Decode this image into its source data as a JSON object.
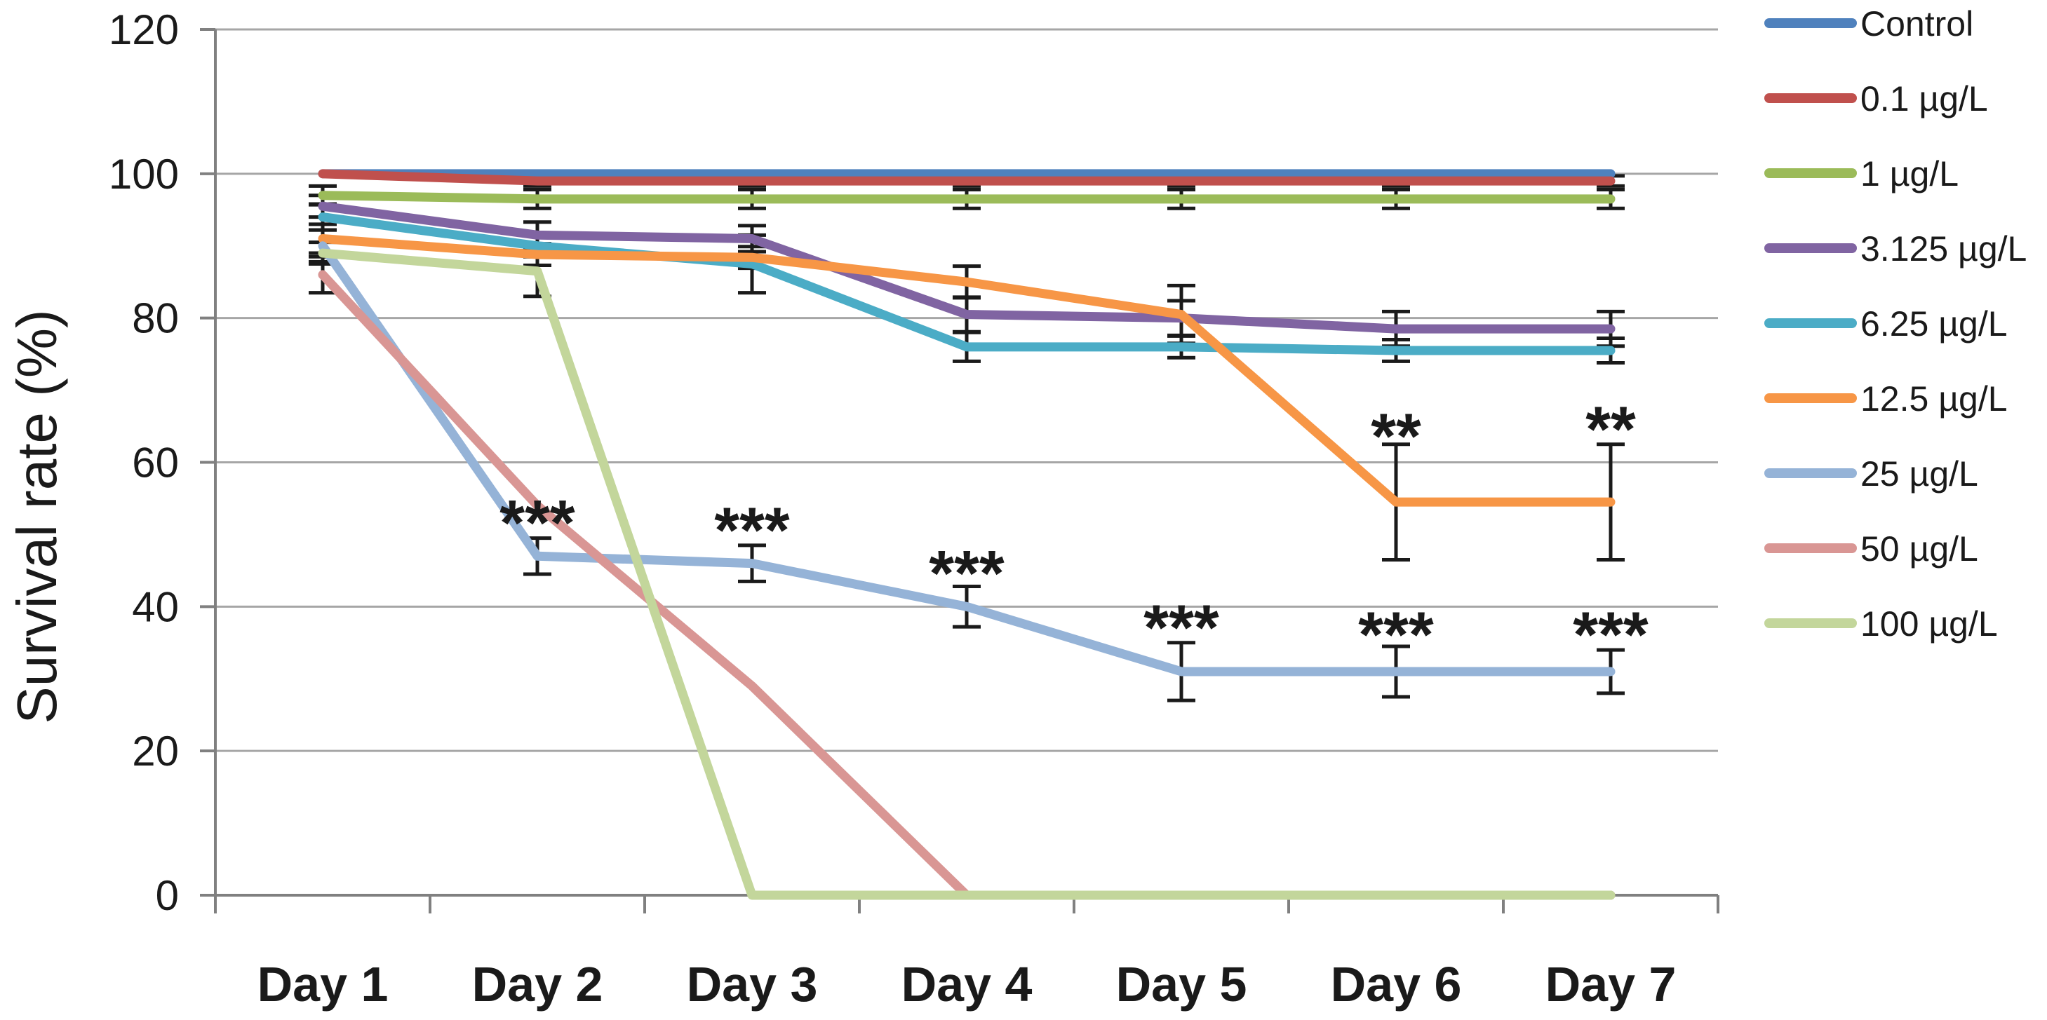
{
  "chart_data": {
    "type": "line",
    "title": "",
    "xlabel": "",
    "ylabel": "Survival rate (%)",
    "ylim": [
      0,
      120
    ],
    "yticks": [
      0,
      20,
      40,
      60,
      80,
      100,
      120
    ],
    "grid": true,
    "legend_position": "right",
    "categories": [
      "Day 1",
      "Day 2",
      "Day 3",
      "Day 4",
      "Day 5",
      "Day 6",
      "Day 7"
    ],
    "series": [
      {
        "name": "Control",
        "color": "#4F81BD",
        "values": [
          100,
          100,
          100,
          100,
          100,
          100,
          100
        ],
        "err": [
          null,
          null,
          null,
          null,
          null,
          null,
          null
        ]
      },
      {
        "name": "0.1 µg/L",
        "color": "#C0504D",
        "values": [
          100,
          99,
          99,
          99,
          99,
          99,
          99
        ],
        "err": [
          null,
          0.7,
          0.7,
          0.7,
          0.7,
          0.7,
          0.7
        ]
      },
      {
        "name": "1 µg/L",
        "color": "#9BBB59",
        "values": [
          97,
          96.5,
          96.5,
          96.5,
          96.5,
          96.5,
          96.5
        ],
        "err": [
          1.3,
          1.3,
          1.3,
          1.3,
          1.3,
          1.3,
          1.3
        ]
      },
      {
        "name": "3.125 µg/L",
        "color": "#8064A2",
        "values": [
          95.5,
          91.5,
          91,
          80.5,
          80,
          78.5,
          78.5
        ],
        "err": [
          1.5,
          1.8,
          1.8,
          2.4,
          2.4,
          2.4,
          2.4
        ]
      },
      {
        "name": "6.25 µg/L",
        "color": "#4BACC6",
        "values": [
          94,
          90,
          87.5,
          76,
          76,
          75.5,
          75.5
        ],
        "err": [
          1.8,
          1.5,
          4,
          2,
          1.5,
          1.5,
          1.7
        ]
      },
      {
        "name": "12.5 µg/L",
        "color": "#F79646",
        "values": [
          91,
          88.8,
          88.4,
          85,
          80.5,
          54.5,
          54.5
        ],
        "err": [
          2,
          1.5,
          1.5,
          2.2,
          4,
          8,
          8
        ]
      },
      {
        "name": "25 µg/L",
        "color": "#95B3D7",
        "values": [
          90,
          47,
          46,
          40,
          31,
          31,
          31
        ],
        "err": [
          2.2,
          2.5,
          2.5,
          2.8,
          4,
          3.5,
          3
        ]
      },
      {
        "name": "50 µg/L",
        "color": "#D99694",
        "values": [
          86,
          54,
          29,
          0,
          0,
          0,
          0
        ],
        "err": [
          2.5,
          null,
          null,
          null,
          null,
          null,
          null
        ]
      },
      {
        "name": "100 µg/L",
        "color": "#C3D69B",
        "values": [
          89,
          86.5,
          0,
          0,
          0,
          0,
          0
        ],
        "err": [
          1.5,
          3.5,
          null,
          null,
          null,
          null,
          null
        ]
      }
    ],
    "annotations": [
      {
        "text": "***",
        "day": 2,
        "value": 53,
        "series": "25 µg/L"
      },
      {
        "text": "***",
        "day": 3,
        "value": 52,
        "series": "25 µg/L"
      },
      {
        "text": "***",
        "day": 4,
        "value": 46,
        "series": "25 µg/L"
      },
      {
        "text": "***",
        "day": 5,
        "value": 38.5,
        "series": "25 µg/L"
      },
      {
        "text": "***",
        "day": 6,
        "value": 37.5,
        "series": "25 µg/L"
      },
      {
        "text": "***",
        "day": 7,
        "value": 37.5,
        "series": "25 µg/L"
      },
      {
        "text": "**",
        "day": 6,
        "value": 65,
        "series": "12.5 µg/L"
      },
      {
        "text": "**",
        "day": 7,
        "value": 66,
        "series": "12.5 µg/L"
      }
    ],
    "colors": {
      "gridline": "#A6A6A6",
      "axis": "#808080",
      "error_bar": "#1a1a1a",
      "text": "#1a1a1a"
    }
  }
}
